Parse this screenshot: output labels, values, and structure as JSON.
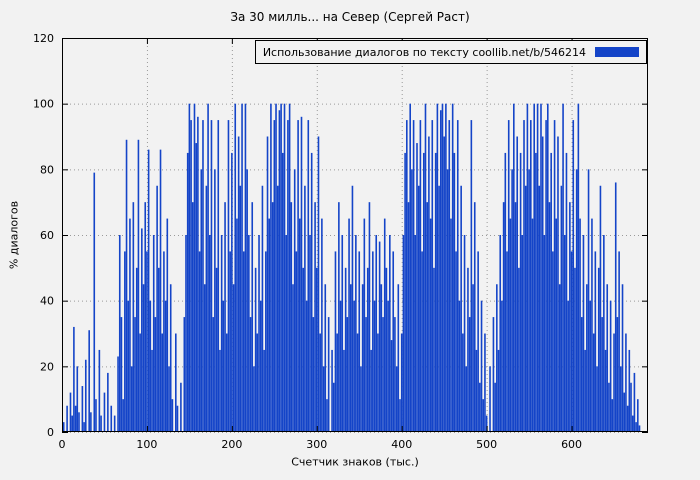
{
  "chart_data": {
    "type": "bar",
    "title": "За 30 милль... на Север (Сергей Раст)",
    "xlabel": "Счетчик знаков (тыс.)",
    "ylabel": "% диалогов",
    "legend_entries": [
      "Использование диалогов по тексту  coollib.net/b/546214"
    ],
    "legend_position": "top-right",
    "grid": true,
    "bar_color": "#1444c8",
    "xlim": [
      0,
      690
    ],
    "ylim": [
      0,
      120
    ],
    "xticks": [
      0,
      100,
      200,
      300,
      400,
      500,
      600
    ],
    "yticks": [
      0,
      20,
      40,
      60,
      80,
      100,
      120
    ],
    "x_start": 2,
    "x_step": 2,
    "values": [
      3,
      0,
      8,
      0,
      12,
      5,
      32,
      8,
      20,
      6,
      0,
      14,
      3,
      22,
      0,
      31,
      6,
      0,
      79,
      10,
      0,
      25,
      5,
      0,
      12,
      0,
      18,
      0,
      8,
      0,
      5,
      0,
      23,
      60,
      35,
      10,
      55,
      89,
      40,
      65,
      20,
      70,
      35,
      50,
      89,
      30,
      62,
      45,
      70,
      55,
      86,
      40,
      25,
      60,
      35,
      75,
      50,
      86,
      30,
      55,
      40,
      65,
      20,
      45,
      10,
      0,
      30,
      8,
      0,
      15,
      0,
      35,
      60,
      85,
      100,
      95,
      70,
      100,
      88,
      96,
      55,
      80,
      95,
      45,
      75,
      100,
      60,
      95,
      35,
      80,
      50,
      95,
      25,
      60,
      40,
      70,
      30,
      95,
      55,
      85,
      45,
      100,
      65,
      90,
      75,
      100,
      55,
      100,
      80,
      60,
      35,
      70,
      20,
      50,
      30,
      60,
      40,
      75,
      25,
      55,
      90,
      65,
      100,
      70,
      95,
      100,
      75,
      98,
      100,
      85,
      100,
      60,
      95,
      100,
      70,
      45,
      80,
      55,
      95,
      65,
      96,
      50,
      75,
      40,
      95,
      60,
      85,
      35,
      70,
      50,
      90,
      30,
      65,
      20,
      45,
      10,
      35,
      0,
      25,
      15,
      55,
      30,
      70,
      40,
      60,
      25,
      50,
      35,
      65,
      45,
      75,
      40,
      60,
      30,
      55,
      20,
      45,
      65,
      35,
      50,
      70,
      25,
      55,
      40,
      60,
      30,
      58,
      45,
      35,
      65,
      50,
      40,
      60,
      28,
      55,
      35,
      20,
      45,
      10,
      30,
      60,
      85,
      95,
      70,
      100,
      80,
      95,
      60,
      88,
      75,
      95,
      55,
      85,
      100,
      70,
      90,
      65,
      95,
      50,
      85,
      100,
      75,
      98,
      100,
      90,
      100,
      80,
      95,
      65,
      100,
      85,
      55,
      95,
      40,
      75,
      30,
      60,
      20,
      50,
      35,
      95,
      45,
      70,
      25,
      55,
      15,
      40,
      10,
      30,
      5,
      0,
      20,
      0,
      35,
      15,
      45,
      25,
      60,
      40,
      70,
      85,
      55,
      95,
      65,
      80,
      100,
      70,
      90,
      50,
      85,
      60,
      95,
      75,
      100,
      80,
      95,
      65,
      100,
      85,
      100,
      75,
      100,
      90,
      60,
      95,
      100,
      70,
      85,
      55,
      95,
      65,
      90,
      45,
      75,
      100,
      60,
      85,
      40,
      70,
      55,
      95,
      50,
      80,
      100,
      65,
      35,
      60,
      25,
      45,
      80,
      40,
      65,
      30,
      55,
      20,
      50,
      75,
      35,
      60,
      25,
      45,
      15,
      40,
      10,
      30,
      76,
      35,
      55,
      20,
      45,
      12,
      30,
      8,
      25,
      15,
      5,
      18,
      3,
      10,
      2
    ]
  }
}
